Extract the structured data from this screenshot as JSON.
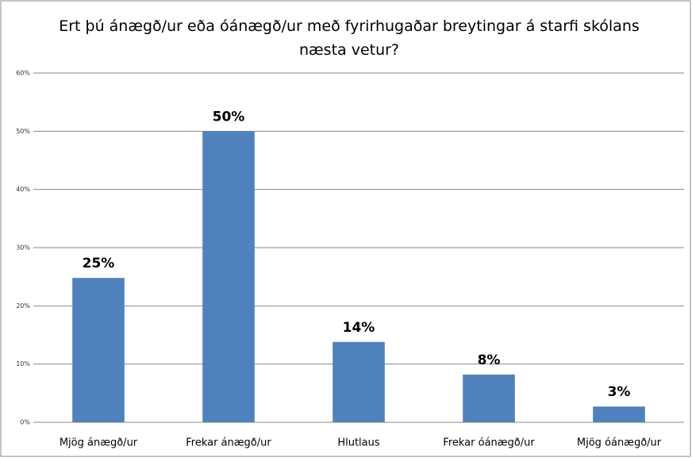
{
  "chart_data": {
    "type": "bar",
    "title": "Ert þú ánægð/ur eða óánægð/ur með fyrirhugaðar breytingar á starfi skólans næsta vetur?",
    "categories": [
      "Mjög ánægð/ur",
      "Frekar ánægð/ur",
      "Hlutlaus",
      "Frekar óánægð/ur",
      "Mjög óánægð/ur"
    ],
    "values": [
      24.8,
      50,
      13.8,
      8.2,
      2.7
    ],
    "value_labels": [
      "25%",
      "50%",
      "14%",
      "8%",
      "3%"
    ],
    "color": "#4f81bd",
    "ylim": [
      0,
      60
    ],
    "yticks": [
      {
        "value": 0,
        "label": "0%"
      },
      {
        "value": 10,
        "label": "10%"
      },
      {
        "value": 20,
        "label": "20%"
      },
      {
        "value": 30,
        "label": "30%"
      },
      {
        "value": 40,
        "label": "40%"
      },
      {
        "value": 50,
        "label": "50%"
      },
      {
        "value": 60,
        "label": "60%"
      }
    ],
    "grid": true
  }
}
